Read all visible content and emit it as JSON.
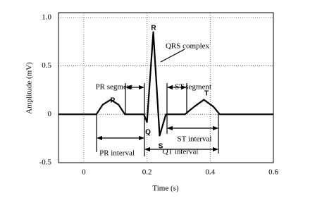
{
  "chart_data": {
    "type": "line",
    "color": "#000000",
    "x_label": "Time (s)",
    "y_label": "Amplitude (mV)",
    "x": [
      -0.08,
      0.04,
      0.06,
      0.085,
      0.11,
      0.13,
      0.19,
      0.2,
      0.22,
      0.24,
      0.26,
      0.32,
      0.35,
      0.38,
      0.41,
      0.43,
      0.6
    ],
    "values": [
      0,
      0,
      0.1,
      0.15,
      0.1,
      0,
      0,
      -0.08,
      0.85,
      -0.22,
      0,
      0,
      0.08,
      0.15,
      0.08,
      0,
      0
    ],
    "xlim": [
      -0.08,
      0.6
    ],
    "xticks": [
      0,
      0.2,
      0.4,
      0.6
    ],
    "ylim": [
      -0.5,
      1.05
    ],
    "yticks": [
      -0.5,
      0,
      0.5,
      {
        "value": 1,
        "label": "1.0"
      }
    ],
    "grid": true,
    "annotations": [
      "P",
      "Q",
      "R",
      "S",
      "T",
      "QRS complex",
      "PR segment",
      "ST segment",
      "ST interval",
      "PR interval",
      "QT interval"
    ]
  }
}
